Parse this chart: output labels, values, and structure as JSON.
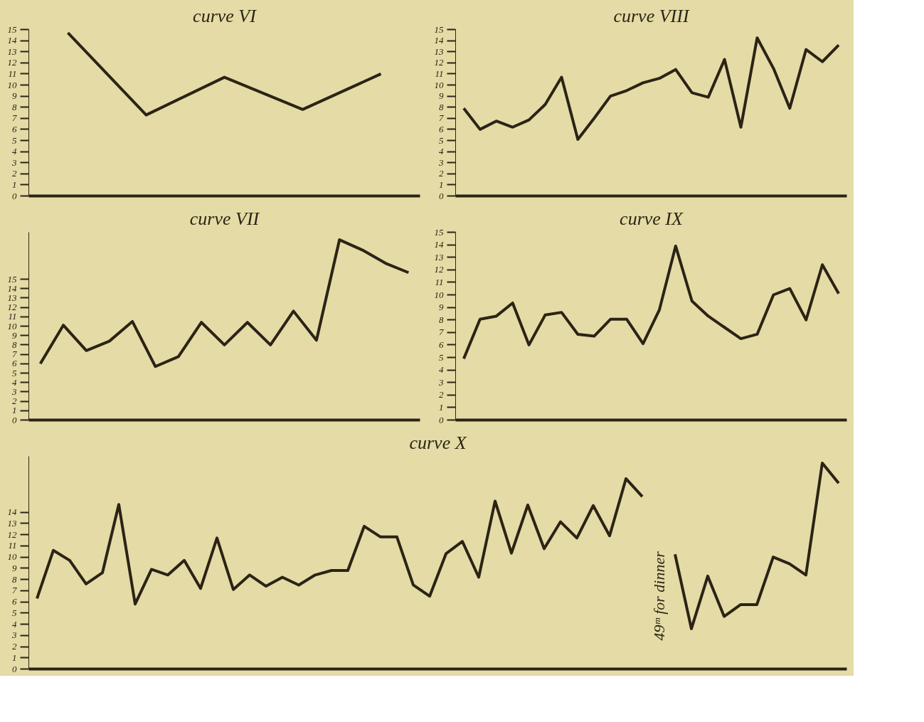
{
  "chart_data": [
    {
      "type": "line",
      "title": "curve VI",
      "categories": [
        null,
        null,
        null,
        null,
        null
      ],
      "values": [
        14.7,
        7.3,
        10.7,
        7.8,
        11.0
      ],
      "color": "#2b2415",
      "ylim": [
        0,
        15
      ],
      "yticks": [
        0,
        1,
        2,
        3,
        4,
        5,
        6,
        7,
        8,
        9,
        10,
        11,
        12,
        13,
        14,
        15
      ],
      "tick_labels": "y",
      "grid": false
    },
    {
      "type": "line",
      "title": "curve VII",
      "categories": [
        null,
        null,
        null,
        null,
        null,
        null,
        null,
        null,
        null,
        null,
        null,
        null,
        null,
        null,
        null,
        null,
        null
      ],
      "values": [
        6.0,
        10.1,
        7.4,
        8.4,
        10.5,
        5.7,
        6.75,
        10.4,
        8.0,
        10.4,
        8.0,
        11.6,
        8.5,
        19.2,
        18.1,
        16.7,
        15.7
      ],
      "color": "#2b2415",
      "ylim": [
        0,
        20
      ],
      "yticks": [
        0,
        1,
        2,
        3,
        4,
        5,
        6,
        7,
        8,
        9,
        10,
        11,
        12,
        13,
        14,
        15
      ],
      "tick_labels": "y"
    },
    {
      "type": "line",
      "title": "curve VIII",
      "categories": [
        null,
        null,
        null,
        null,
        null,
        null,
        null,
        null,
        null,
        null,
        null,
        null,
        null,
        null,
        null,
        null,
        null,
        null,
        null,
        null,
        null,
        null,
        null,
        null
      ],
      "values": [
        7.9,
        6.0,
        6.75,
        6.2,
        6.85,
        8.25,
        10.7,
        5.1,
        7.0,
        9.0,
        9.5,
        10.2,
        10.6,
        11.4,
        9.3,
        8.9,
        12.3,
        6.2,
        14.25,
        11.5,
        7.9,
        13.2,
        12.1,
        13.6
      ],
      "color": "#2b2415",
      "ylim": [
        0,
        15
      ],
      "yticks": [
        0,
        1,
        2,
        3,
        4,
        5,
        6,
        7,
        8,
        9,
        10,
        11,
        12,
        13,
        14,
        15
      ],
      "tick_labels": "y"
    },
    {
      "type": "line",
      "title": "curve IX",
      "categories": [
        null,
        null,
        null,
        null,
        null,
        null,
        null,
        null,
        null,
        null,
        null,
        null,
        null,
        null,
        null,
        null,
        null,
        null,
        null,
        null,
        null,
        null,
        null,
        null
      ],
      "values": [
        4.9,
        8.05,
        8.3,
        9.35,
        6.0,
        8.4,
        8.6,
        6.85,
        6.7,
        8.05,
        8.05,
        6.1,
        8.8,
        13.9,
        9.5,
        8.3,
        7.4,
        6.5,
        6.85,
        10.0,
        10.5,
        8.0,
        12.4,
        10.1
      ],
      "color": "#2b2415",
      "ylim": [
        0,
        15
      ],
      "yticks": [
        0,
        1,
        2,
        3,
        4,
        5,
        6,
        7,
        8,
        9,
        10,
        11,
        12,
        13,
        14,
        15
      ],
      "tick_labels": "y"
    },
    {
      "type": "line",
      "title": "curve X",
      "categories": [
        null,
        null,
        null,
        null,
        null,
        null,
        null,
        null,
        null,
        null,
        null,
        null,
        null,
        null,
        null,
        null,
        null,
        null,
        null,
        null,
        null,
        null,
        null,
        null,
        null,
        null,
        null,
        null,
        null,
        null,
        null,
        null,
        null,
        null,
        null,
        null,
        null,
        null,
        null,
        null,
        null,
        null,
        null,
        null,
        null,
        null,
        null,
        null,
        null,
        null
      ],
      "series": [
        {
          "color": "#2b2415",
          "values": [
            6.3,
            10.6,
            9.7,
            7.6,
            8.6,
            14.7,
            5.8,
            8.9,
            8.4,
            9.7,
            7.2,
            11.7,
            7.1,
            8.4,
            7.4,
            8.2,
            7.5,
            8.4,
            8.8,
            8.8,
            12.75,
            11.8,
            11.8,
            7.5,
            6.5,
            10.3,
            11.4,
            8.2,
            15.0,
            10.35,
            14.65,
            10.75,
            13.15,
            11.7,
            14.6,
            11.9,
            17.0,
            15.4,
            null,
            null,
            null,
            null,
            null,
            null,
            null,
            null,
            null,
            null,
            null,
            null
          ]
        },
        {
          "color": "#2b2415",
          "values": [
            null,
            null,
            null,
            null,
            null,
            null,
            null,
            null,
            null,
            null,
            null,
            null,
            null,
            null,
            null,
            null,
            null,
            null,
            null,
            null,
            null,
            null,
            null,
            null,
            null,
            null,
            null,
            null,
            null,
            null,
            null,
            null,
            null,
            null,
            null,
            null,
            null,
            null,
            null,
            10.25,
            3.6,
            8.3,
            4.7,
            5.75,
            5.75,
            10.0,
            9.4,
            8.4,
            18.4,
            16.6
          ]
        }
      ],
      "ylim": [
        0,
        19
      ],
      "yticks": [
        0,
        1,
        2,
        3,
        4,
        5,
        6,
        7,
        8,
        9,
        10,
        11,
        12,
        13,
        14
      ],
      "tick_labels": "y",
      "annotations": [
        "49ᵐ for dinner"
      ]
    }
  ]
}
